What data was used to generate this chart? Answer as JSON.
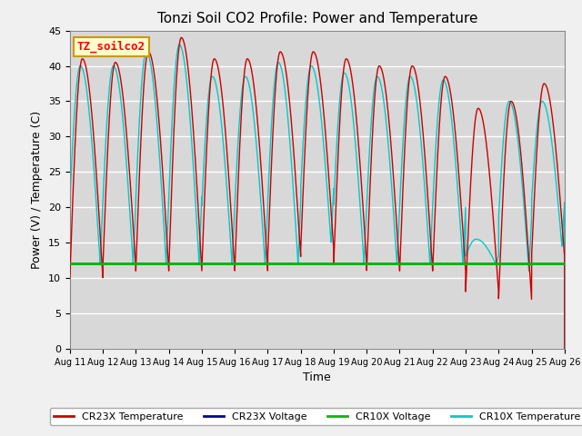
{
  "title": "Tonzi Soil CO2 Profile: Power and Temperature",
  "ylabel": "Power (V) / Temperature (C)",
  "xlabel": "Time",
  "xlim": [
    0,
    15
  ],
  "ylim": [
    0,
    45
  ],
  "yticks": [
    0,
    5,
    10,
    15,
    20,
    25,
    30,
    35,
    40,
    45
  ],
  "xtick_labels": [
    "Aug 11",
    "Aug 12",
    "Aug 13",
    "Aug 14",
    "Aug 15",
    "Aug 16",
    "Aug 17",
    "Aug 18",
    "Aug 19",
    "Aug 20",
    "Aug 21",
    "Aug 22",
    "Aug 23",
    "Aug 24",
    "Aug 25",
    "Aug 26"
  ],
  "annotation_text": "TZ_soilco2",
  "annotation_bg": "#ffffcc",
  "annotation_border": "#cc9900",
  "cr23x_temp_color": "#cc0000",
  "cr23x_volt_color": "#000099",
  "cr10x_volt_color": "#00bb00",
  "cr10x_temp_color": "#00cccc",
  "cr10x_volt_value": 12.0,
  "cr23x_volt_value": 12.0,
  "plot_bg_color": "#d8d8d8",
  "fig_bg_color": "#f0f0f0",
  "grid_color": "#ffffff",
  "legend_labels": [
    "CR23X Temperature",
    "CR23X Voltage",
    "CR10X Voltage",
    "CR10X Temperature"
  ]
}
